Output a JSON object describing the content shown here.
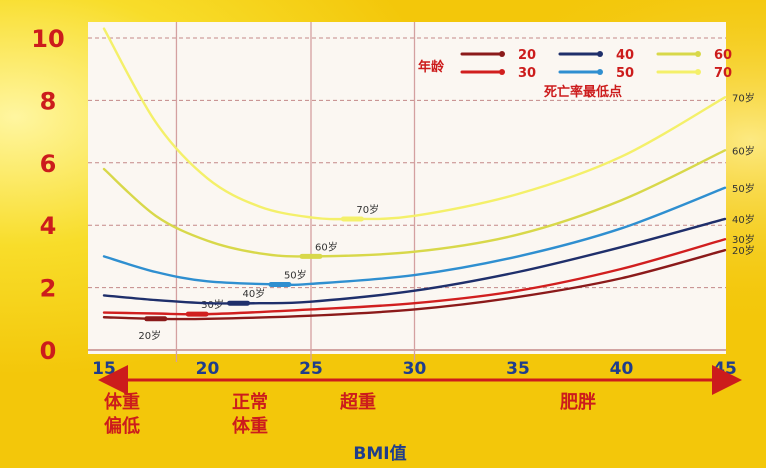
{
  "chart_data": {
    "type": "line",
    "xlabel": "BMI值",
    "xlim": [
      15,
      45
    ],
    "ylim": [
      0,
      10
    ],
    "x_ticks": [
      "15",
      "20",
      "25",
      "30",
      "35",
      "40",
      "45"
    ],
    "y_ticks": [
      "0",
      "2",
      "4",
      "6",
      "8",
      "10"
    ],
    "vertical_lines_x": [
      18.5,
      25,
      30
    ],
    "grid": "horizontal dashed",
    "legend_position": "top-right",
    "legend_title": "年龄",
    "legend_note": "死亡率最低点",
    "categories": [
      {
        "label": "体重\n偏低"
      },
      {
        "label": "正常\n体重"
      },
      {
        "label": "超重"
      },
      {
        "label": "肥胖"
      }
    ],
    "series": [
      {
        "name": "20",
        "color": "#8b1a1a",
        "end_label": "20岁",
        "min_label": "20岁",
        "min_x": 17.5,
        "min_y": 1.0,
        "points": [
          [
            15,
            1.05
          ],
          [
            17.5,
            1.0
          ],
          [
            20,
            1.0
          ],
          [
            25,
            1.1
          ],
          [
            30,
            1.3
          ],
          [
            35,
            1.7
          ],
          [
            40,
            2.3
          ],
          [
            45,
            3.2
          ]
        ]
      },
      {
        "name": "30",
        "color": "#d11f1f",
        "end_label": "30岁",
        "min_label": "30岁",
        "min_x": 19.5,
        "min_y": 1.15,
        "points": [
          [
            15,
            1.2
          ],
          [
            17.5,
            1.17
          ],
          [
            20,
            1.15
          ],
          [
            25,
            1.3
          ],
          [
            30,
            1.5
          ],
          [
            35,
            1.9
          ],
          [
            40,
            2.6
          ],
          [
            45,
            3.55
          ]
        ]
      },
      {
        "name": "40",
        "color": "#1f2f6b",
        "end_label": "40岁",
        "min_label": "40岁",
        "min_x": 21.5,
        "min_y": 1.5,
        "points": [
          [
            15,
            1.75
          ],
          [
            17.5,
            1.6
          ],
          [
            20,
            1.5
          ],
          [
            22.5,
            1.5
          ],
          [
            25,
            1.55
          ],
          [
            30,
            1.9
          ],
          [
            35,
            2.5
          ],
          [
            40,
            3.3
          ],
          [
            45,
            4.2
          ]
        ]
      },
      {
        "name": "50",
        "color": "#2f8fd0",
        "end_label": "50岁",
        "min_label": "50岁",
        "min_x": 23.5,
        "min_y": 2.1,
        "points": [
          [
            15,
            3.0
          ],
          [
            17.5,
            2.5
          ],
          [
            20,
            2.2
          ],
          [
            23.5,
            2.1
          ],
          [
            25,
            2.12
          ],
          [
            30,
            2.4
          ],
          [
            35,
            3.0
          ],
          [
            40,
            3.9
          ],
          [
            45,
            5.2
          ]
        ]
      },
      {
        "name": "60",
        "color": "#d8d84a",
        "end_label": "60岁",
        "min_label": "60岁",
        "min_x": 25,
        "min_y": 3.0,
        "points": [
          [
            15,
            5.8
          ],
          [
            17.5,
            4.3
          ],
          [
            20,
            3.5
          ],
          [
            22.5,
            3.1
          ],
          [
            25,
            3.0
          ],
          [
            30,
            3.15
          ],
          [
            35,
            3.7
          ],
          [
            40,
            4.8
          ],
          [
            45,
            6.4
          ]
        ]
      },
      {
        "name": "70",
        "color": "#f4f06a",
        "end_label": "70岁",
        "min_label": "70岁",
        "min_x": 27,
        "min_y": 4.2,
        "points": [
          [
            15,
            10.3
          ],
          [
            17.5,
            7.3
          ],
          [
            20,
            5.5
          ],
          [
            22.5,
            4.6
          ],
          [
            25,
            4.25
          ],
          [
            27,
            4.2
          ],
          [
            30,
            4.3
          ],
          [
            35,
            5.0
          ],
          [
            40,
            6.2
          ],
          [
            45,
            8.1
          ]
        ]
      }
    ]
  }
}
